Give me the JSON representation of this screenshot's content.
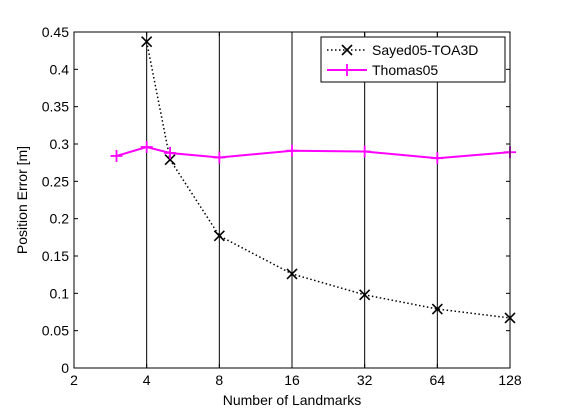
{
  "chart_data": {
    "type": "line",
    "title": "",
    "xlabel": "Number of Landmarks",
    "ylabel": "Position Error [m]",
    "xscale": "log2",
    "xlim": [
      2,
      128
    ],
    "ylim": [
      0,
      0.45
    ],
    "grid": "vertical",
    "legend_position": "top-right",
    "x_ticks": [
      2,
      4,
      8,
      16,
      32,
      64,
      128
    ],
    "x_tick_labels": [
      "2",
      "4",
      "8",
      "16",
      "32",
      "64",
      "128"
    ],
    "y_ticks": [
      0,
      0.05,
      0.1,
      0.15,
      0.2,
      0.25,
      0.3,
      0.35,
      0.4,
      0.45
    ],
    "y_tick_labels": [
      "0",
      "0.05",
      "0.1",
      "0.15",
      "0.2",
      "0.25",
      "0.3",
      "0.35",
      "0.4",
      "0.45"
    ],
    "series": [
      {
        "name": "Sayed05-TOA3D",
        "color": "#000000",
        "line_style": "dotted",
        "marker": "x",
        "x": [
          4,
          5,
          8,
          16,
          32,
          64,
          128
        ],
        "y": [
          0.437,
          0.279,
          0.177,
          0.126,
          0.098,
          0.079,
          0.067
        ]
      },
      {
        "name": "Thomas05",
        "color": "#ff00ff",
        "line_style": "solid",
        "marker": "+",
        "x": [
          3,
          4,
          5,
          8,
          16,
          32,
          64,
          128
        ],
        "y": [
          0.284,
          0.296,
          0.288,
          0.282,
          0.291,
          0.29,
          0.281,
          0.289
        ]
      }
    ]
  }
}
